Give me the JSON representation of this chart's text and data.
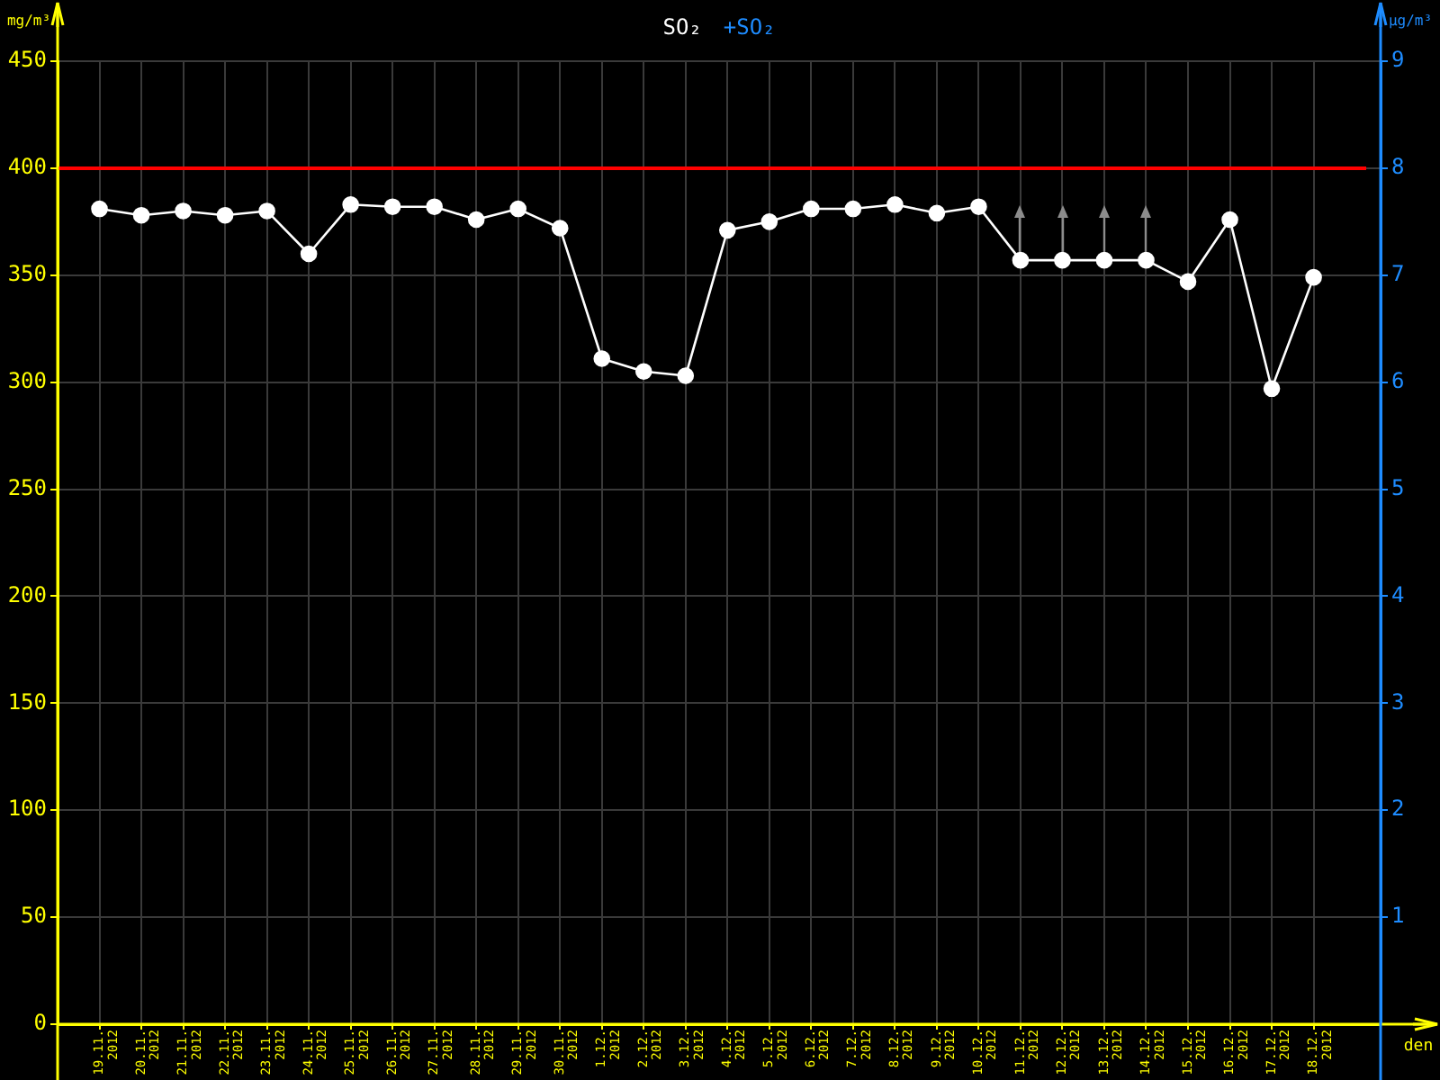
{
  "chart_data": {
    "type": "line",
    "legend": "top",
    "ylabel": "mg/m³",
    "y2label": "μg/m³",
    "xlabel": "den",
    "annotations": [
      "+SO₂"
    ],
    "categories": [
      "19.11. 2012",
      "20.11. 2012",
      "21.11. 2012",
      "22.11. 2012",
      "23.11. 2012",
      "24.11. 2012",
      "25.11. 2012",
      "26.11. 2012",
      "27.11. 2012",
      "28.11. 2012",
      "29.11. 2012",
      "30.11. 2012",
      "1.12. 2012",
      "2.12. 2012",
      "3.12. 2012",
      "4.12. 2012",
      "5.12. 2012",
      "6.12. 2012",
      "7.12. 2012",
      "8.12. 2012",
      "9.12. 2012",
      "10.12. 2012",
      "11.12. 2012",
      "12.12. 2012",
      "13.12. 2012",
      "14.12. 2012",
      "15.12. 2012",
      "16.12. 2012",
      "17.12. 2012",
      "18.12. 2012"
    ],
    "series": [
      {
        "name": "SO₂",
        "color": "#ffffff",
        "values": [
          381,
          378,
          380,
          378,
          380,
          360,
          383,
          382,
          382,
          376,
          381,
          372,
          311,
          305,
          303,
          371,
          375,
          381,
          381,
          383,
          379,
          382,
          357,
          357,
          357,
          357,
          347,
          376,
          297,
          349
        ]
      }
    ],
    "ylim": [
      0,
      450
    ],
    "yticks": [
      0,
      50,
      100,
      150,
      200,
      250,
      300,
      350,
      400,
      450
    ],
    "y2lim": [
      0,
      9
    ],
    "y2ticks": [
      1,
      2,
      3,
      4,
      5,
      6,
      7,
      8,
      9
    ],
    "ref_lines": [
      {
        "axis": "y",
        "value": 400,
        "color": "#ff0000"
      }
    ],
    "grid": true,
    "marker": "circle",
    "line_style": "solid"
  }
}
